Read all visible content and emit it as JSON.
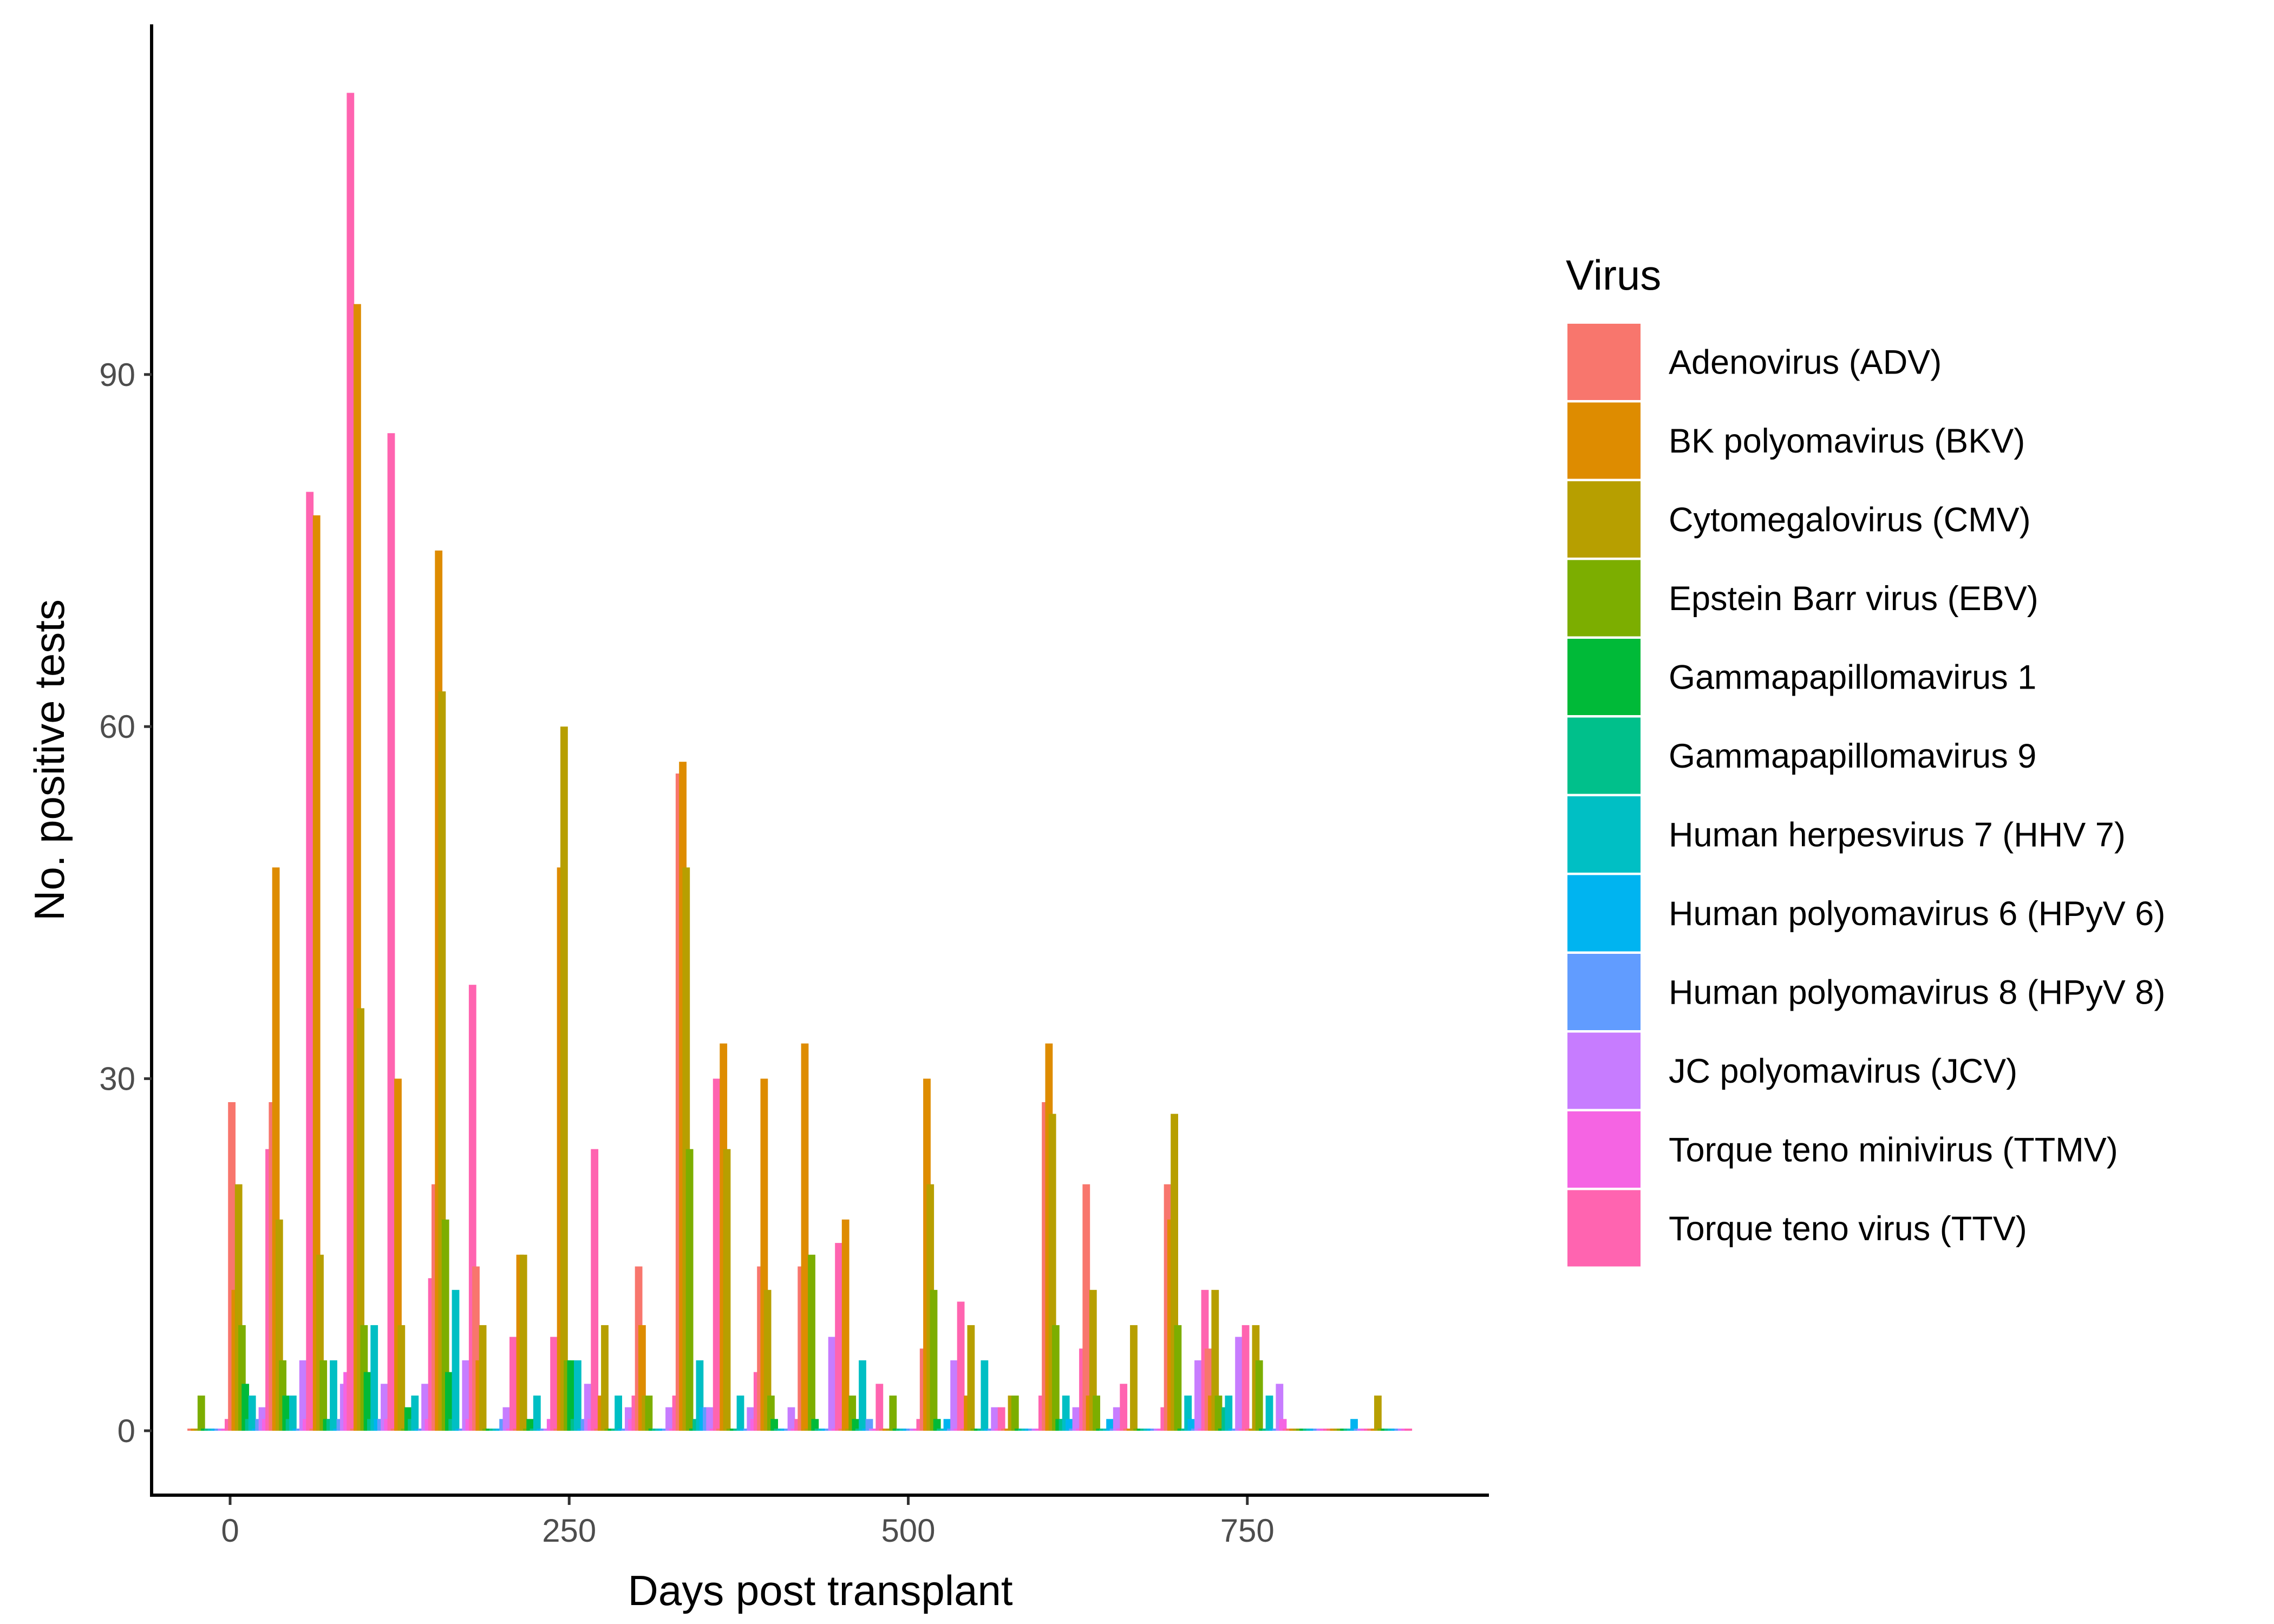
{
  "chart_data": {
    "type": "bar",
    "subtype": "dodged histogram",
    "xlabel": "Days post transplant",
    "ylabel": "No. positive tests",
    "xlim": [
      -45,
      925
    ],
    "ylim": [
      -8,
      122
    ],
    "x_ticks": [
      0,
      250,
      500,
      750
    ],
    "x_tick_labels": [
      "0",
      "250",
      "500",
      "750"
    ],
    "y_ticks": [
      0,
      30,
      60,
      90
    ],
    "y_tick_labels": [
      "0",
      "30",
      "60",
      "90"
    ],
    "grid": false,
    "legend": {
      "title": "Virus",
      "position": "right"
    },
    "bin_width_days": 30,
    "bin_centers": [
      -15,
      15,
      45,
      75,
      105,
      135,
      165,
      195,
      225,
      255,
      285,
      315,
      345,
      375,
      405,
      435,
      465,
      495,
      525,
      555,
      585,
      615,
      645,
      675,
      705,
      735,
      765,
      795,
      825,
      855
    ],
    "series": [
      {
        "name": "Adenovirus (ADV)",
        "color": "#F8766D",
        "values": [
          0,
          28,
          28,
          0,
          0,
          0,
          21,
          14,
          0,
          0,
          0,
          14,
          56,
          0,
          14,
          14,
          0,
          0,
          7,
          0,
          0,
          28,
          21,
          0,
          21,
          7,
          0,
          0,
          0,
          0
        ]
      },
      {
        "name": "BK polyomavirus (BKV)",
        "color": "#DE8C00",
        "values": [
          0,
          12,
          48,
          78,
          96,
          30,
          75,
          6,
          15,
          48,
          3,
          9,
          57,
          33,
          30,
          33,
          18,
          0,
          30,
          3,
          0,
          33,
          3,
          0,
          18,
          3,
          0,
          0,
          0,
          0
        ]
      },
      {
        "name": "Cytomegalovirus (CMV)",
        "color": "#B79F00",
        "values": [
          0,
          21,
          18,
          15,
          36,
          9,
          63,
          9,
          15,
          60,
          9,
          3,
          48,
          24,
          12,
          0,
          0,
          0,
          21,
          9,
          3,
          27,
          12,
          9,
          27,
          12,
          9,
          0,
          0,
          3
        ]
      },
      {
        "name": "Epstein Barr virus (EBV)",
        "color": "#7CAE00",
        "values": [
          3,
          9,
          6,
          6,
          9,
          0,
          18,
          0,
          0,
          6,
          0,
          3,
          24,
          0,
          3,
          15,
          3,
          3,
          12,
          0,
          3,
          9,
          3,
          0,
          9,
          3,
          6,
          0,
          0,
          0
        ]
      },
      {
        "name": "Gammapapillomavirus 1",
        "color": "#00BA38",
        "values": [
          0,
          4,
          3,
          1,
          5,
          2,
          5,
          0,
          1,
          6,
          0,
          0,
          0,
          0,
          1,
          1,
          1,
          0,
          1,
          0,
          0,
          1,
          0,
          0,
          0,
          0,
          0,
          0,
          0,
          0
        ]
      },
      {
        "name": "Gammapapillomavirus 9",
        "color": "#00C08B",
        "values": [
          0,
          1,
          1,
          1,
          1,
          1,
          1,
          0,
          0,
          1,
          0,
          0,
          1,
          0,
          0,
          0,
          0,
          0,
          0,
          0,
          0,
          1,
          0,
          0,
          0,
          2,
          0,
          0,
          0,
          0
        ]
      },
      {
        "name": "Human herpesvirus 7 (HHV 7)",
        "color": "#00BFC4",
        "values": [
          0,
          3,
          3,
          6,
          9,
          3,
          12,
          0,
          3,
          6,
          3,
          0,
          6,
          3,
          0,
          0,
          6,
          0,
          0,
          6,
          0,
          3,
          0,
          0,
          3,
          3,
          3,
          0,
          0,
          0
        ]
      },
      {
        "name": "Human polyomavirus 6 (HPyV 6)",
        "color": "#00B4F0",
        "values": [
          0,
          0,
          0,
          0,
          1,
          0,
          0,
          0,
          0,
          0,
          0,
          0,
          2,
          0,
          0,
          0,
          0,
          0,
          1,
          0,
          0,
          1,
          1,
          0,
          1,
          0,
          0,
          0,
          1,
          0
        ]
      },
      {
        "name": "Human polyomavirus 8 (HPyV 8)",
        "color": "#619CFF",
        "values": [
          0,
          1,
          0,
          1,
          1,
          0,
          0,
          1,
          0,
          1,
          0,
          0,
          2,
          0,
          0,
          0,
          1,
          0,
          0,
          0,
          0,
          0,
          0,
          0,
          0,
          0,
          0,
          0,
          0,
          0
        ]
      },
      {
        "name": "JC polyomavirus (JCV)",
        "color": "#C77CFF",
        "values": [
          0,
          2,
          6,
          4,
          4,
          4,
          6,
          2,
          0,
          4,
          2,
          2,
          2,
          2,
          2,
          8,
          0,
          0,
          6,
          2,
          0,
          2,
          2,
          0,
          6,
          8,
          4,
          0,
          0,
          0
        ]
      },
      {
        "name": "Torque teno minivirus (TTMV)",
        "color": "#F564E3",
        "values": [
          0,
          1,
          1,
          5,
          1,
          1,
          1,
          0,
          1,
          1,
          1,
          0,
          0,
          1,
          0,
          0,
          0,
          0,
          0,
          0,
          0,
          0,
          0,
          0,
          0,
          0,
          1,
          0,
          0,
          0
        ]
      },
      {
        "name": "Torque teno virus (TTV)",
        "color": "#FF64B0",
        "values": [
          1,
          24,
          80,
          114,
          85,
          13,
          38,
          8,
          8,
          24,
          3,
          3,
          30,
          5,
          1,
          16,
          4,
          1,
          11,
          2,
          3,
          7,
          4,
          2,
          12,
          9,
          0,
          0,
          0,
          0
        ]
      }
    ]
  }
}
